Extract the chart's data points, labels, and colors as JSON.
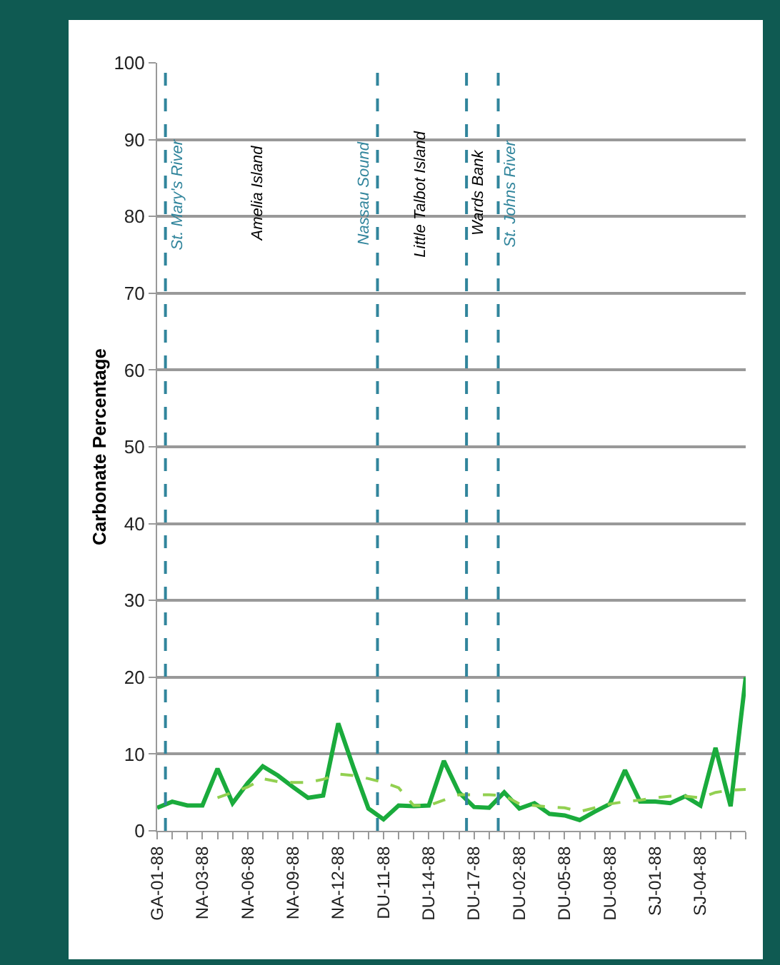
{
  "chart_data": {
    "type": "line",
    "ylabel": "Carbonate Percentage",
    "categories": [
      "GA-01-88",
      null,
      null,
      "NA-03-88",
      null,
      null,
      "NA-06-88",
      null,
      null,
      "NA-09-88",
      null,
      null,
      "NA-12-88",
      null,
      null,
      "DU-11-88",
      null,
      null,
      "DU-14-88",
      null,
      null,
      "DU-17-88",
      null,
      null,
      "DU-02-88",
      null,
      null,
      "DU-05-88",
      null,
      null,
      "DU-08-88",
      null,
      null,
      "SJ-01-88",
      null,
      null,
      "SJ-04-88",
      null,
      null,
      null
    ],
    "series": [
      {
        "color": "#1aab3c",
        "line_style": "solid",
        "values": [
          3.0,
          3.8,
          3.3,
          3.3,
          8.1,
          3.6,
          6.2,
          8.4,
          7.2,
          5.7,
          4.3,
          4.6,
          14.0,
          8.3,
          2.9,
          1.5,
          3.3,
          3.2,
          3.3,
          9.1,
          5.0,
          3.1,
          3.0,
          5.0,
          2.9,
          3.6,
          2.2,
          2.0,
          1.4,
          2.5,
          3.5,
          7.9,
          3.8,
          3.8,
          3.6,
          4.5,
          3.3,
          10.8,
          3.2,
          20
        ]
      },
      {
        "color": "#92d050",
        "line_style": "dashed",
        "values": [
          null,
          null,
          null,
          null,
          4.3,
          5.0,
          5.7,
          6.8,
          6.4,
          6.3,
          6.3,
          6.7,
          7.4,
          7.2,
          6.8,
          6.3,
          5.6,
          3.3,
          3.3,
          4.0,
          4.7,
          4.7,
          4.7,
          4.6,
          3.5,
          3.3,
          3.1,
          3.0,
          2.5,
          3.0,
          3.5,
          3.8,
          4.0,
          4.3,
          4.5,
          4.5,
          4.3,
          5.0,
          5.3,
          5.4
        ]
      }
    ],
    "ylim": [
      0,
      100
    ],
    "yticks": [
      0,
      10,
      20,
      30,
      40,
      50,
      60,
      70,
      80,
      90,
      100
    ],
    "grid": "y",
    "marker": "none",
    "annotations": [
      "St. Mary's River",
      "Amelia Island",
      "Nassau Sound",
      "Little Talbot Island",
      "Wards Bank",
      "St. Johns River"
    ]
  }
}
